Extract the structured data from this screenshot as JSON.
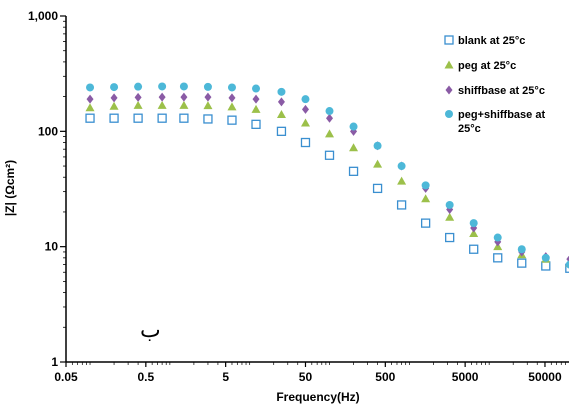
{
  "chart_data": {
    "type": "scatter",
    "xlabel": "Frequency(Hz)",
    "ylabel": "|Z| (Ωcm²)",
    "x_scale": "log",
    "y_scale": "log",
    "xlim": [
      0.05,
      100000
    ],
    "ylim": [
      1,
      1000
    ],
    "x_ticks": [
      0.05,
      0.5,
      5,
      50,
      500,
      5000,
      50000
    ],
    "x_tick_labels": [
      "0.05",
      "0.5",
      "5",
      "50",
      "500",
      "5000",
      "50000"
    ],
    "y_ticks": [
      1,
      10,
      100,
      1000
    ],
    "y_tick_labels": [
      "1",
      "10",
      "100",
      "1,000"
    ],
    "grid": false,
    "legend_position": "top-right",
    "annotation": "ب",
    "x": [
      0.1,
      0.2,
      0.4,
      0.8,
      1.5,
      3,
      6,
      12,
      25,
      50,
      100,
      200,
      400,
      800,
      1600,
      3200,
      6400,
      12800,
      25600,
      51200,
      102400
    ],
    "series": [
      {
        "name": "blank at 25°c",
        "marker": "square-open",
        "color": "#3a8fd0",
        "values": [
          130,
          130,
          130,
          130,
          130,
          128,
          125,
          115,
          100,
          80,
          62,
          45,
          32,
          23,
          16,
          12,
          9.5,
          8,
          7.2,
          6.8,
          6.5
        ]
      },
      {
        "name": "peg at 25°c",
        "marker": "triangle",
        "color": "#9cc04a",
        "values": [
          160,
          165,
          168,
          168,
          168,
          167,
          163,
          155,
          140,
          118,
          95,
          72,
          52,
          37,
          26,
          18,
          13,
          10,
          8.5,
          7.8,
          7.2
        ]
      },
      {
        "name": "shiffbase at 25°c",
        "marker": "diamond",
        "color": "#8a5ba5",
        "values": [
          190,
          195,
          197,
          198,
          198,
          198,
          195,
          190,
          180,
          155,
          130,
          100,
          75,
          50,
          32,
          21,
          14.5,
          11,
          9,
          8.2,
          7.8
        ]
      },
      {
        "name": "peg+shiffbase at 25°c",
        "marker": "circle",
        "color": "#4db8d8",
        "values": [
          240,
          242,
          244,
          245,
          245,
          243,
          240,
          235,
          220,
          190,
          150,
          110,
          75,
          50,
          34,
          23,
          16,
          12,
          9.5,
          8,
          7
        ]
      }
    ]
  }
}
